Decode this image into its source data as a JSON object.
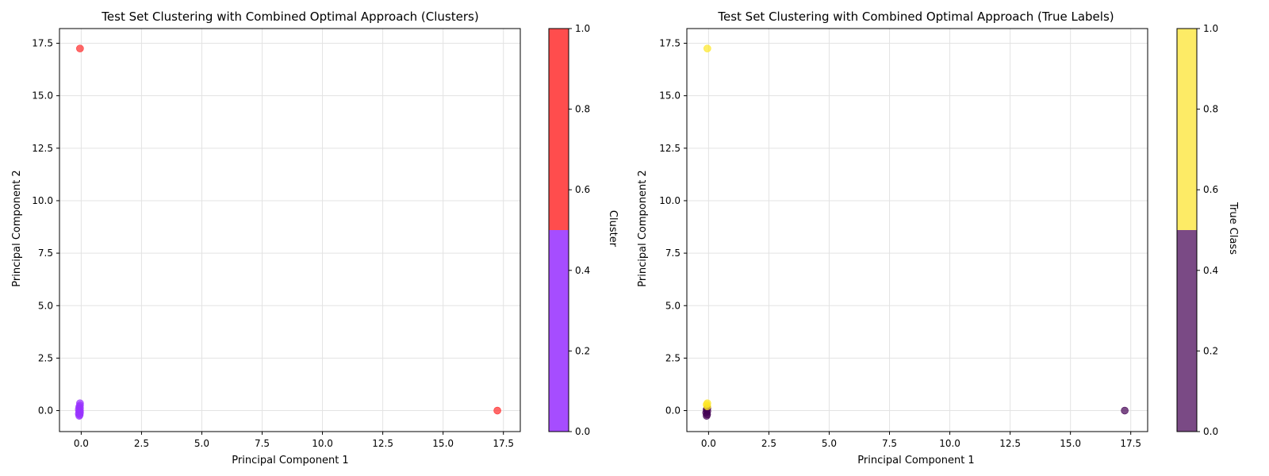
{
  "chart_data": [
    {
      "type": "scatter",
      "title": "Test Set Clustering with Combined Optimal Approach (Clusters)",
      "xlabel": "Principal Component 1",
      "ylabel": "Principal Component 2",
      "xlim": [
        -0.9,
        18.2
      ],
      "ylim": [
        -1.0,
        18.2
      ],
      "xticks": [
        0.0,
        2.5,
        5.0,
        7.5,
        10.0,
        12.5,
        15.0,
        17.5
      ],
      "yticks": [
        0.0,
        2.5,
        5.0,
        7.5,
        10.0,
        12.5,
        15.0,
        17.5
      ],
      "grid": true,
      "colorbar": {
        "label": "Cluster",
        "range": [
          0,
          1
        ],
        "ticks": [
          0.0,
          0.2,
          0.4,
          0.6,
          0.8,
          1.0
        ],
        "segments": [
          {
            "from": 0.0,
            "to": 0.5,
            "color": "#a64dff"
          },
          {
            "from": 0.5,
            "to": 1.0,
            "color": "#ff4d4d"
          }
        ]
      },
      "point_alpha": 0.7,
      "series": [
        {
          "group": "cluster 0",
          "color": "#9933ff",
          "points": [
            [
              -0.05,
              0.35
            ],
            [
              -0.05,
              0.25
            ],
            [
              -0.08,
              0.18
            ],
            [
              -0.05,
              0.12
            ],
            [
              -0.1,
              0.06
            ],
            [
              -0.05,
              0.0
            ],
            [
              -0.08,
              -0.05
            ],
            [
              -0.05,
              -0.1
            ],
            [
              -0.1,
              -0.15
            ],
            [
              -0.06,
              -0.2
            ],
            [
              -0.08,
              -0.25
            ]
          ]
        },
        {
          "group": "cluster 1",
          "color": "#ff2a2a",
          "points": [
            [
              -0.05,
              17.25
            ],
            [
              17.25,
              0.0
            ]
          ]
        }
      ]
    },
    {
      "type": "scatter",
      "title": "Test Set Clustering with Combined Optimal Approach (True Labels)",
      "xlabel": "Principal Component 1",
      "ylabel": "Principal Component 2",
      "xlim": [
        -0.9,
        18.2
      ],
      "ylim": [
        -1.0,
        18.2
      ],
      "xticks": [
        0.0,
        2.5,
        5.0,
        7.5,
        10.0,
        12.5,
        15.0,
        17.5
      ],
      "yticks": [
        0.0,
        2.5,
        5.0,
        7.5,
        10.0,
        12.5,
        15.0,
        17.5
      ],
      "grid": true,
      "colorbar": {
        "label": "True Class",
        "range": [
          0,
          1
        ],
        "ticks": [
          0.0,
          0.2,
          0.4,
          0.6,
          0.8,
          1.0
        ],
        "segments": [
          {
            "from": 0.0,
            "to": 0.5,
            "color": "#7a4a85"
          },
          {
            "from": 0.5,
            "to": 1.0,
            "color": "#fdeb66"
          }
        ]
      },
      "point_alpha": 0.7,
      "series": [
        {
          "group": "class 0",
          "color": "#440154",
          "points": [
            [
              -0.05,
              0.12
            ],
            [
              -0.08,
              0.05
            ],
            [
              -0.05,
              -0.02
            ],
            [
              -0.1,
              -0.1
            ],
            [
              -0.06,
              -0.18
            ],
            [
              -0.08,
              -0.25
            ],
            [
              17.25,
              0.0
            ]
          ]
        },
        {
          "group": "class 1",
          "color": "#fde725",
          "points": [
            [
              -0.05,
              17.25
            ],
            [
              -0.05,
              0.35
            ],
            [
              -0.08,
              0.28
            ],
            [
              -0.05,
              0.2
            ]
          ]
        }
      ]
    }
  ]
}
